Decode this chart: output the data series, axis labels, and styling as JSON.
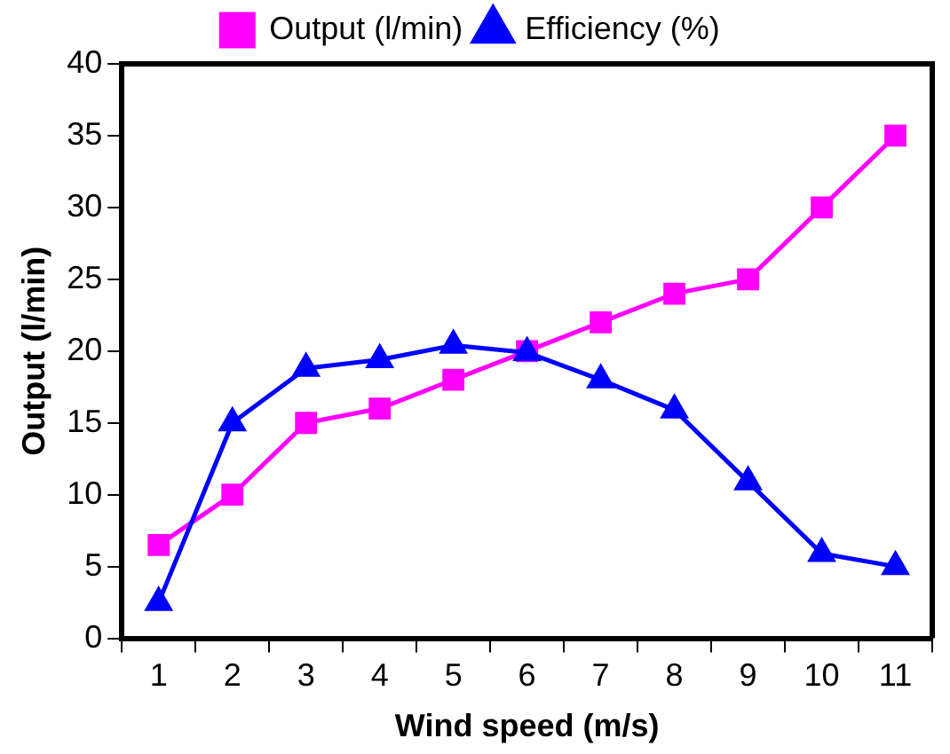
{
  "chart_data": {
    "type": "line",
    "xlabel": "Wind speed (m/s)",
    "ylabel": "Output (l/min)",
    "categories": [
      "1",
      "2",
      "3",
      "4",
      "5",
      "6",
      "7",
      "8",
      "9",
      "10",
      "11"
    ],
    "series": [
      {
        "name": "Output (l/min)",
        "color": "#ff00ff",
        "marker": "square",
        "values": [
          6.5,
          10,
          15,
          16,
          18,
          20,
          22,
          24,
          25,
          30,
          35
        ]
      },
      {
        "name": "Efficiency (%)",
        "color": "#0000ff",
        "marker": "triangle",
        "values": [
          2.5,
          15,
          18.8,
          19.4,
          20.4,
          19.9,
          18,
          15.9,
          10.9,
          5.9,
          5
        ]
      }
    ],
    "ylim": [
      0,
      40
    ],
    "yticks": [
      0,
      5,
      10,
      15,
      20,
      25,
      30,
      35,
      40
    ],
    "grid": false,
    "legend": "top"
  }
}
